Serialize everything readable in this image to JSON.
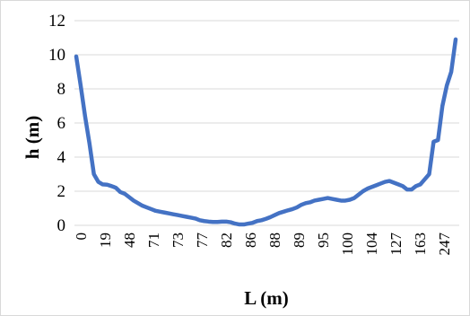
{
  "chart_data": {
    "type": "line",
    "title": "",
    "xlabel": "L (m)",
    "ylabel": "h (m)",
    "ylim": [
      0,
      12
    ],
    "yticks": [
      "0",
      "2",
      "4",
      "6",
      "8",
      "10",
      "12"
    ],
    "grid": "horizontal",
    "legend": "none",
    "x_tick_labels": [
      "0",
      "19",
      "48",
      "71",
      "73",
      "77",
      "82",
      "86",
      "88",
      "89",
      "95",
      "100",
      "104",
      "127",
      "163",
      "247"
    ],
    "series": [
      {
        "color": "#4472c4",
        "values": [
          9.9,
          8.2,
          6.4,
          4.8,
          3.0,
          2.55,
          2.4,
          2.38,
          2.3,
          2.2,
          1.95,
          1.85,
          1.65,
          1.45,
          1.3,
          1.15,
          1.05,
          0.95,
          0.85,
          0.8,
          0.75,
          0.7,
          0.65,
          0.6,
          0.55,
          0.5,
          0.45,
          0.4,
          0.3,
          0.25,
          0.22,
          0.2,
          0.2,
          0.22,
          0.22,
          0.18,
          0.1,
          0.05,
          0.05,
          0.1,
          0.15,
          0.25,
          0.3,
          0.38,
          0.48,
          0.6,
          0.72,
          0.8,
          0.88,
          0.95,
          1.05,
          1.2,
          1.3,
          1.35,
          1.45,
          1.5,
          1.55,
          1.6,
          1.55,
          1.5,
          1.45,
          1.45,
          1.5,
          1.6,
          1.8,
          2.0,
          2.15,
          2.25,
          2.35,
          2.45,
          2.55,
          2.6,
          2.5,
          2.4,
          2.3,
          2.1,
          2.1,
          2.3,
          2.4,
          2.7,
          3.0,
          4.9,
          5.0,
          7.0,
          8.2,
          9.0,
          10.9
        ]
      }
    ]
  }
}
